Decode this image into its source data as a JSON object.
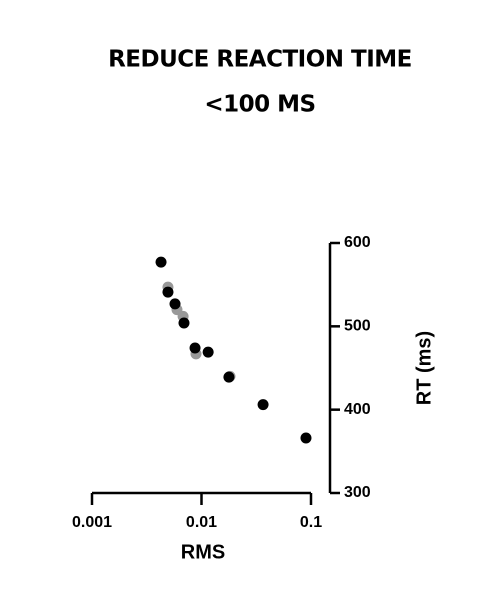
{
  "chart_data": {
    "type": "scatter",
    "title": "REDUCE REACTION TIME",
    "subtitle": "<100 MS",
    "x_label": "RMS",
    "y_label": "RT (ms)",
    "xscale": "log",
    "y_axis_side": "right",
    "xlim": [
      0.001,
      0.1
    ],
    "xticks": [
      0.001,
      0.01,
      0.1
    ],
    "ylim": [
      300,
      600
    ],
    "yticks": [
      300,
      400,
      500,
      600
    ],
    "series": [
      {
        "color": "#999999",
        "x": [
          0.00494,
          0.00597,
          0.00679,
          0.00891,
          0.0182
        ],
        "values": [
          547,
          520,
          512,
          467,
          440
        ]
      },
      {
        "color": "#000000",
        "x": [
          0.00427,
          0.00494,
          0.00573,
          0.00692,
          0.00873,
          0.0115,
          0.0178,
          0.0365,
          0.09
        ],
        "values": [
          577,
          541,
          527,
          504,
          474,
          469,
          439,
          406,
          366
        ]
      }
    ]
  }
}
